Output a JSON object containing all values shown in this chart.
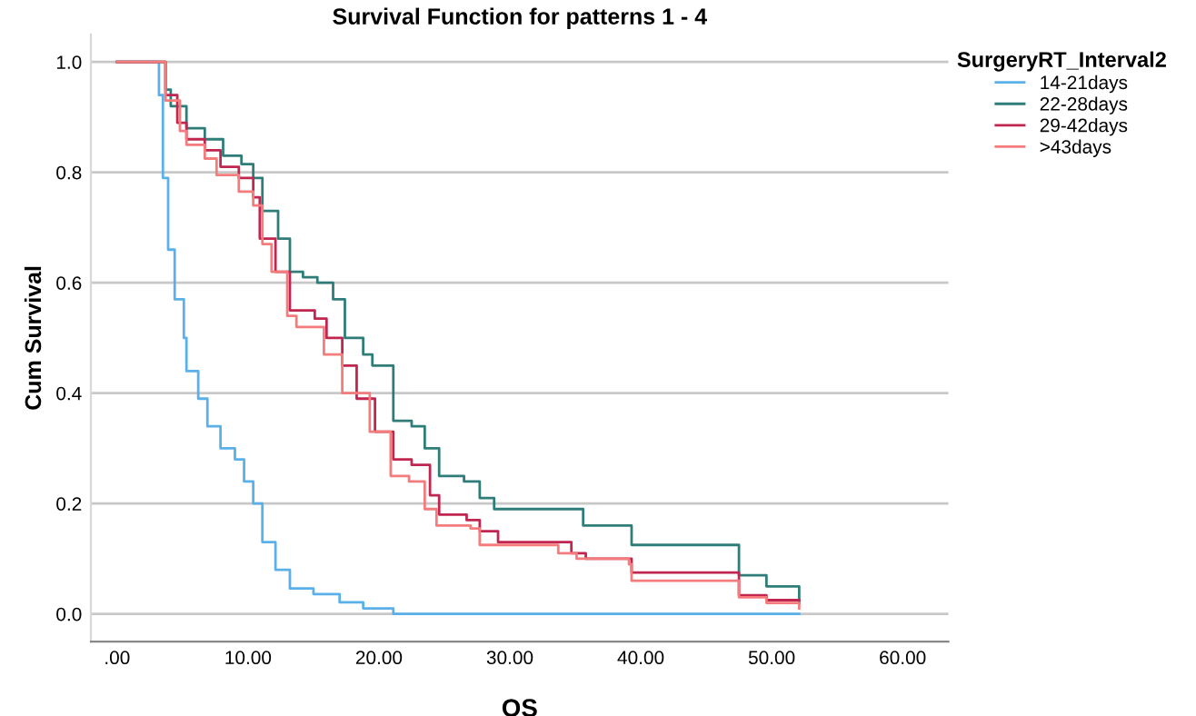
{
  "chart_data": {
    "type": "step",
    "title": "Survival Function for patterns 1 - 4",
    "xlabel": "OS",
    "ylabel": "Cum Survival",
    "legend_title": "SurgeryRT_Interval2",
    "legend": "right",
    "grid": "y",
    "xlim": [
      -2,
      63.5
    ],
    "ylim": [
      -0.05,
      1.05
    ],
    "xticks": [
      {
        "value": 0,
        "label": ".00"
      },
      {
        "value": 10,
        "label": "10.00"
      },
      {
        "value": 20,
        "label": "20.00"
      },
      {
        "value": 30,
        "label": "30.00"
      },
      {
        "value": 40,
        "label": "40.00"
      },
      {
        "value": 50,
        "label": "50.00"
      },
      {
        "value": 60,
        "label": "60.00"
      }
    ],
    "yticks": [
      {
        "value": 0,
        "label": "0.0"
      },
      0.2,
      0.4,
      0.6,
      0.8,
      {
        "value": 1,
        "label": "1.0"
      }
    ],
    "series": [
      {
        "name": "14-21days",
        "color": "#5ab0e8",
        "x": [
          0,
          3.0,
          3.2,
          3.5,
          3.9,
          4.4,
          5.1,
          5.3,
          6.2,
          6.9,
          7.9,
          9.0,
          9.7,
          10.4,
          11.1,
          12.1,
          13.2,
          15.0,
          17.0,
          18.8,
          21.1,
          52.1
        ],
        "values": [
          1.0,
          1.0,
          0.94,
          0.79,
          0.66,
          0.57,
          0.5,
          0.44,
          0.39,
          0.34,
          0.3,
          0.28,
          0.24,
          0.2,
          0.13,
          0.08,
          0.046,
          0.036,
          0.021,
          0.01,
          0.0,
          0.0
        ]
      },
      {
        "name": "22-28days",
        "color": "#2e7d78",
        "x": [
          0,
          3.0,
          3.7,
          4.1,
          5.3,
          6.7,
          8.1,
          9.5,
          10.4,
          11.1,
          12.3,
          13.2,
          14.2,
          15.3,
          16.5,
          17.4,
          18.8,
          19.5,
          21.1,
          22.5,
          23.5,
          24.6,
          26.5,
          27.7,
          28.8,
          33.7,
          35.6,
          39.3,
          46.8,
          47.5,
          49.6,
          52.1
        ],
        "values": [
          1.0,
          1.0,
          0.95,
          0.92,
          0.88,
          0.86,
          0.83,
          0.815,
          0.79,
          0.73,
          0.68,
          0.62,
          0.61,
          0.6,
          0.57,
          0.5,
          0.47,
          0.45,
          0.35,
          0.34,
          0.3,
          0.25,
          0.24,
          0.21,
          0.19,
          0.19,
          0.16,
          0.125,
          0.125,
          0.07,
          0.05,
          0.02
        ]
      },
      {
        "name": "29-42days",
        "color": "#c0264f",
        "x": [
          0,
          3.0,
          3.7,
          4.6,
          5.3,
          6.7,
          7.9,
          9.3,
          10.4,
          10.9,
          12.1,
          13.2,
          15.1,
          16.0,
          17.2,
          18.3,
          19.7,
          21.1,
          22.5,
          23.9,
          24.6,
          26.7,
          27.7,
          29.1,
          34.7,
          35.8,
          39.3,
          47.5,
          49.6,
          52.1
        ],
        "values": [
          1.0,
          1.0,
          0.94,
          0.89,
          0.86,
          0.84,
          0.81,
          0.79,
          0.755,
          0.68,
          0.62,
          0.55,
          0.535,
          0.5,
          0.45,
          0.39,
          0.33,
          0.28,
          0.27,
          0.215,
          0.18,
          0.17,
          0.15,
          0.13,
          0.11,
          0.1,
          0.075,
          0.034,
          0.025,
          0.025
        ]
      },
      {
        "name": ">43days",
        "color": "#f47c7c",
        "x": [
          0,
          3.0,
          3.7,
          4.8,
          5.3,
          6.7,
          7.6,
          9.3,
          10.4,
          11.1,
          11.8,
          13.0,
          13.7,
          15.8,
          17.2,
          19.3,
          20.9,
          22.3,
          23.5,
          24.4,
          27.0,
          27.7,
          33.7,
          35.1,
          39.1,
          39.3,
          47.5,
          49.6,
          52.1
        ],
        "values": [
          1.0,
          1.0,
          0.93,
          0.875,
          0.85,
          0.825,
          0.795,
          0.765,
          0.74,
          0.67,
          0.62,
          0.54,
          0.52,
          0.47,
          0.4,
          0.33,
          0.25,
          0.24,
          0.19,
          0.16,
          0.155,
          0.125,
          0.11,
          0.1,
          0.09,
          0.06,
          0.03,
          0.02,
          0.01
        ]
      }
    ]
  }
}
